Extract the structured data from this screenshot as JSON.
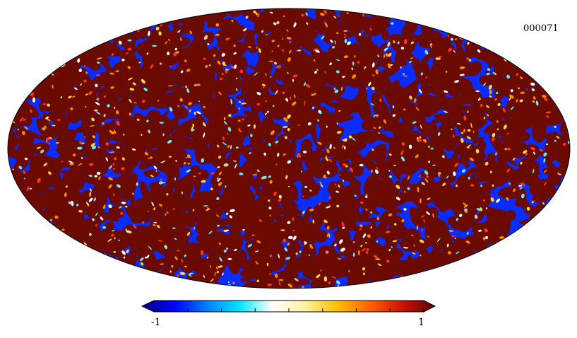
{
  "map": {
    "id_label": "000071",
    "projection": "mollweide",
    "colormap": {
      "name": "jet",
      "stops": [
        "#00007f",
        "#0000ff",
        "#0080ff",
        "#00e6ff",
        "#ffffff",
        "#fff2a0",
        "#ffc000",
        "#ff6000",
        "#d01000",
        "#5a0000"
      ]
    }
  },
  "colorbar": {
    "min_label": "-1",
    "max_label": "1",
    "tick_count": 9
  },
  "colors": {
    "blue_field": "#0a2cff",
    "red_field": "#6a0a00",
    "outline": "#000000"
  }
}
